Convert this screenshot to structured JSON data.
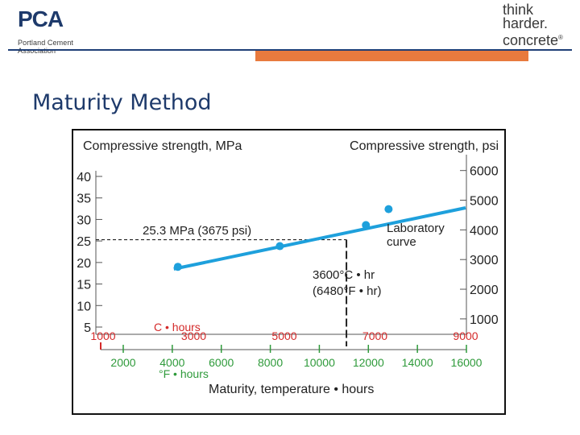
{
  "header": {
    "logo_main": "PCA",
    "logo_sub": "Portland Cement Association",
    "brand_line1": "think",
    "brand_line2": "harder.",
    "brand_line3": "concrete",
    "brand_mark": "®"
  },
  "slide": {
    "title": "Maturity Method"
  },
  "chart_data": {
    "type": "scatter",
    "left_axis_title": "Compressive strength, MPa",
    "right_axis_title": "Compressive strength, psi",
    "xlabel": "Maturity, temperature • hours",
    "x_unit_c_label": "C • hours",
    "x_unit_f_label": "°F • hours",
    "xlim_c": [
      1000,
      9000
    ],
    "ylim_mpa": [
      5,
      40
    ],
    "y_ticks_mpa": [
      5,
      10,
      15,
      20,
      25,
      30,
      35,
      40
    ],
    "y_ticks_psi": [
      1000,
      2000,
      3000,
      4000,
      5000,
      6000
    ],
    "x_ticks_c": [
      1000,
      3000,
      5000,
      7000,
      9000
    ],
    "x_ticks_f": [
      2000,
      4000,
      6000,
      8000,
      10000,
      12000,
      14000,
      16000
    ],
    "series": [
      {
        "name": "Laboratory curve",
        "points": [
          {
            "x": 2650,
            "y": 19.0
          },
          {
            "x": 4900,
            "y": 23.8
          },
          {
            "x": 6800,
            "y": 28.7
          },
          {
            "x": 7300,
            "y": 32.4
          }
        ],
        "fit_line": [
          {
            "x": 2560,
            "y": 18.5
          },
          {
            "x": 9000,
            "y": 32.7
          }
        ]
      }
    ],
    "annotations": {
      "strength_label": "25.3 MPa (3675 psi)",
      "strength_value_mpa": 25.3,
      "maturity_label_line1": "3600°C • hr",
      "maturity_label_line2": "(6480°F • hr)",
      "maturity_value_c": 3600,
      "curve_label_line1": "Laboratory",
      "curve_label_line2": "curve"
    },
    "colors": {
      "curve": "#1ea0dc",
      "c_axis": "#d42a2a",
      "f_axis": "#2e9a3a",
      "frame": "#111111",
      "axis_lines": "#888888"
    }
  }
}
